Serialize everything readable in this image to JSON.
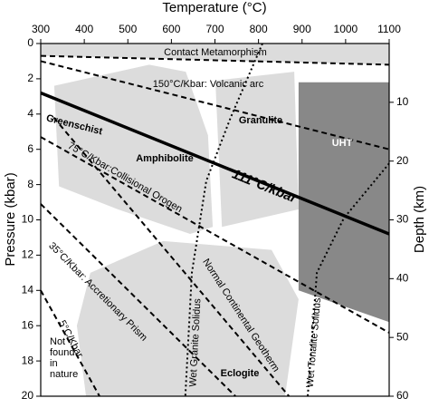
{
  "chart_data": {
    "type": "phase-diagram",
    "x_label": "Temperature (°C)",
    "y_label": "Pressure (kbar)",
    "y2_label": "Depth (km)",
    "xlim": [
      300,
      1100
    ],
    "xticks": [
      300,
      400,
      500,
      600,
      700,
      800,
      900,
      1000,
      1100
    ],
    "ylim": [
      0,
      20
    ],
    "yticks": [
      0,
      2,
      4,
      6,
      8,
      10,
      12,
      14,
      16,
      18,
      20
    ],
    "y2lim": [
      0,
      60
    ],
    "y2ticks": [
      10,
      20,
      30,
      40,
      50,
      60
    ],
    "regions": [
      {
        "color": "#dcdcdc",
        "T": [
          300,
          1100,
          1100,
          300
        ],
        "P": [
          0,
          0,
          1.2,
          0.7
        ]
      },
      {
        "color": "#dcdcdc",
        "T": [
          331,
          549,
          633,
          684,
          695,
          643,
          477,
          342
        ],
        "P": [
          2.4,
          1.2,
          1.6,
          5.2,
          10.4,
          10.8,
          9.4,
          8.1
        ]
      },
      {
        "color": "#dcdcdc",
        "T": [
          701,
          882,
          892,
          716
        ],
        "P": [
          2.1,
          1.6,
          9.4,
          10.4
        ]
      },
      {
        "color": "#dcdcdc",
        "T": [
          414,
          581,
          830,
          892,
          861,
          404,
          383
        ],
        "P": [
          13,
          11.2,
          11.7,
          14.5,
          20,
          20,
          16
        ]
      },
      {
        "color": "#888888",
        "T": [
          892,
          1100,
          1100,
          892
        ],
        "P": [
          2.2,
          2.2,
          15.8,
          14
        ]
      }
    ],
    "lines": [
      {
        "style": "dashed",
        "T": [
          300,
          1100
        ],
        "P": [
          0.7,
          1.2
        ]
      },
      {
        "style": "dashed",
        "label": "150°C/Kbar: Volcanic arc",
        "T": [
          300,
          1100
        ],
        "P": [
          1.0,
          6.0
        ]
      },
      {
        "style": "solid",
        "label": "111°C/kbar",
        "T": [
          300,
          1100
        ],
        "P": [
          2.8,
          10.8
        ]
      },
      {
        "style": "dashed",
        "label": "75°C/Kbar:Collisional Orogen",
        "T": [
          300,
          1100
        ],
        "P": [
          5.3,
          16.4
        ]
      },
      {
        "style": "dashed",
        "label": "35°C/Kbar: Accretionary Prism",
        "T": [
          300,
          747
        ],
        "P": [
          9.1,
          20
        ]
      },
      {
        "style": "dashed",
        "label": "5°C/Kbar",
        "T": [
          300,
          435
        ],
        "P": [
          14.0,
          20
        ]
      },
      {
        "style": "dashed",
        "label": "Normal Continental Geotherm",
        "T": [
          330,
          870
        ],
        "P": [
          4.2,
          20
        ]
      },
      {
        "style": "dotted",
        "label": "Wet Granite Solidus",
        "T": [
          809,
          736,
          680,
          647,
          632
        ],
        "P": [
          0,
          4.2,
          7.8,
          13,
          20
        ]
      },
      {
        "style": "dotted",
        "label": "Wet Tonalite Solidus",
        "T": [
          1100,
          996,
          934,
          913
        ],
        "P": [
          6.8,
          9.9,
          13,
          20
        ]
      }
    ],
    "fields": [
      "Contact Metamorphism",
      "Greenschist",
      "Amphibolite",
      "Granulite",
      "UHT",
      "Eclogite"
    ],
    "note_lines": [
      "Not",
      "found",
      "in",
      "nature"
    ]
  }
}
